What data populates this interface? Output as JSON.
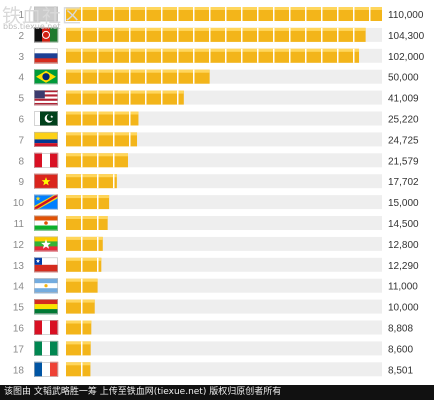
{
  "watermark": {
    "brand": "铁血社区",
    "url": "bbs.tiexue.net"
  },
  "caption": "该图由 文韬武略胜一筹 上传至铁血网(tiexue.net) 版权归原创者所有",
  "colors": {
    "bar": "#f3b51a",
    "bar_highlight": "#ffd65c",
    "track": "#eeeeee",
    "segment_gap": "#ffffff"
  },
  "chart_data": {
    "type": "bar",
    "orientation": "horizontal",
    "xlim": [
      0,
      110000
    ],
    "grid": false,
    "legend": "none",
    "rows": [
      {
        "rank": "1",
        "flag": "flag-icon",
        "value": 110000,
        "label": "110,000"
      },
      {
        "rank": "2",
        "flag": "afghanistan-flag-icon",
        "value": 104300,
        "label": "104,300"
      },
      {
        "rank": "3",
        "flag": "russia-flag-icon",
        "value": 102000,
        "label": "102,000"
      },
      {
        "rank": "4",
        "flag": "brazil-flag-icon",
        "value": 50000,
        "label": "50,000"
      },
      {
        "rank": "5",
        "flag": "usa-flag-icon",
        "value": 41009,
        "label": "41,009"
      },
      {
        "rank": "6",
        "flag": "pakistan-flag-icon",
        "value": 25220,
        "label": "25,220"
      },
      {
        "rank": "7",
        "flag": "colombia-flag-icon",
        "value": 24725,
        "label": "24,725"
      },
      {
        "rank": "8",
        "flag": "peru-flag-icon",
        "value": 21579,
        "label": "21,579"
      },
      {
        "rank": "9",
        "flag": "vietnam-flag-icon",
        "value": 17702,
        "label": "17,702"
      },
      {
        "rank": "10",
        "flag": "dr-congo-flag-icon",
        "value": 15000,
        "label": "15,000"
      },
      {
        "rank": "11",
        "flag": "niger-flag-icon",
        "value": 14500,
        "label": "14,500"
      },
      {
        "rank": "12",
        "flag": "myanmar-flag-icon",
        "value": 12800,
        "label": "12,800"
      },
      {
        "rank": "13",
        "flag": "chile-flag-icon",
        "value": 12290,
        "label": "12,290"
      },
      {
        "rank": "14",
        "flag": "argentina-flag-icon",
        "value": 11000,
        "label": "11,000"
      },
      {
        "rank": "15",
        "flag": "bolivia-flag-icon",
        "value": 10000,
        "label": "10,000"
      },
      {
        "rank": "16",
        "flag": "peru-flag-icon",
        "value": 8808,
        "label": "8,808"
      },
      {
        "rank": "17",
        "flag": "nigeria-flag-icon",
        "value": 8600,
        "label": "8,600"
      },
      {
        "rank": "18",
        "flag": "france-flag-icon",
        "value": 8501,
        "label": "8,501"
      }
    ]
  }
}
